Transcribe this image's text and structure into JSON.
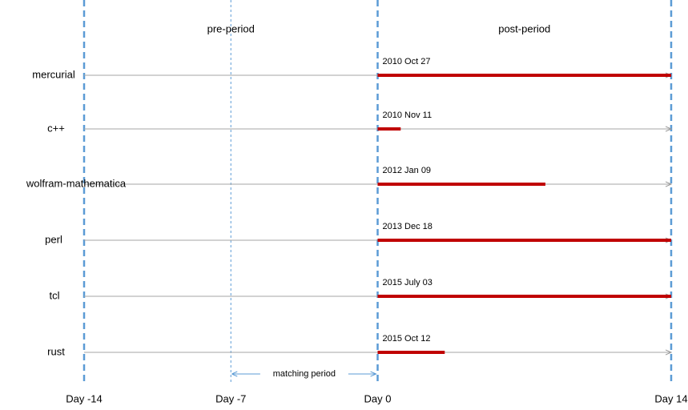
{
  "chart_data": {
    "type": "timeline",
    "categories": [
      "mercurial",
      "c++",
      "wolfram-mathematica",
      "perl",
      "tcl",
      "rust"
    ],
    "dates": [
      "2010 Oct 27",
      "2010 Nov 11",
      "2012 Jan 09",
      "2013 Dec 18",
      "2015 July 03",
      "2015 Oct 12"
    ],
    "values": [
      14,
      1.1,
      8,
      14,
      14,
      3.2
    ],
    "color": "#c00000",
    "xlim": [
      -14,
      14
    ],
    "xticks": [
      {
        "value": -14,
        "label": "Day -14"
      },
      {
        "value": -7,
        "label": "Day -7"
      },
      {
        "value": 0,
        "label": "Day 0"
      },
      {
        "value": 14,
        "label": "Day 14"
      }
    ],
    "annotations": [
      "pre-period",
      "post-period",
      "matching period"
    ]
  }
}
